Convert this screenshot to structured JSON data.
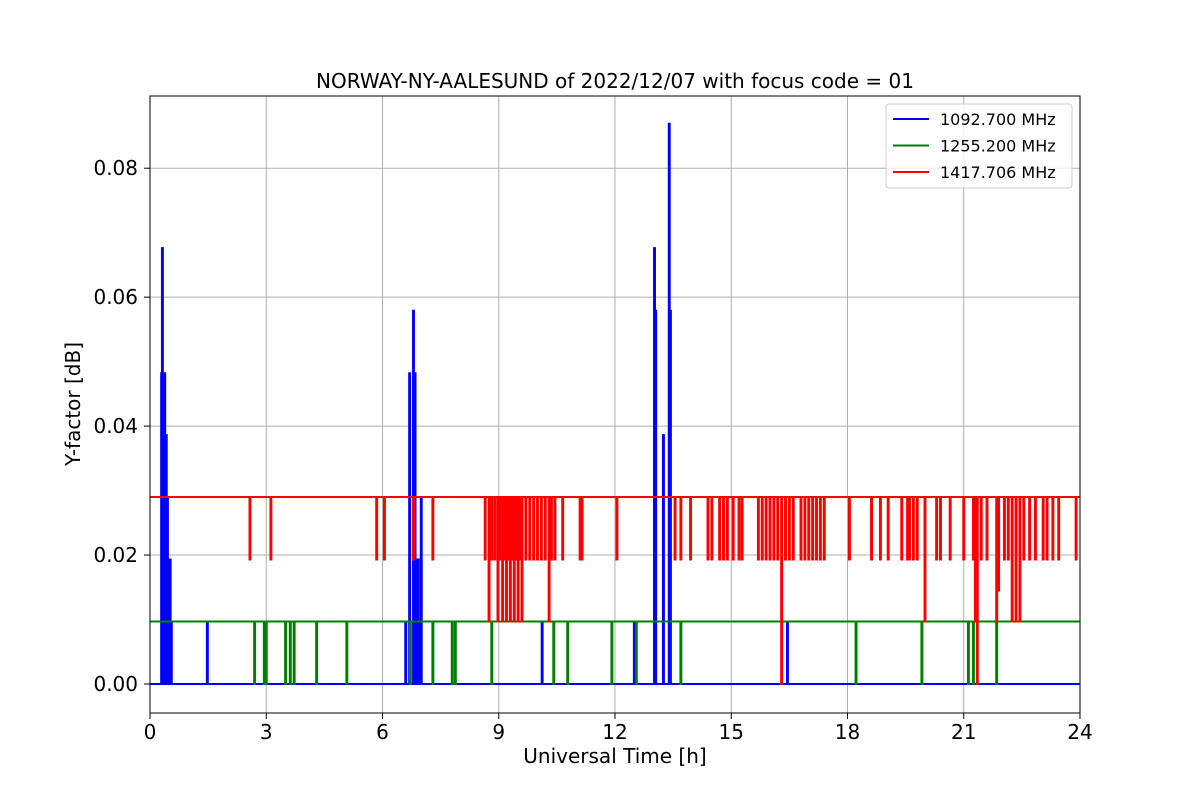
{
  "chart_data": {
    "type": "line",
    "title": "NORWAY-NY-AALESUND of 2022/12/07 with focus code = 01",
    "xlabel": "Universal Time [h]",
    "ylabel": "Y-factor [dB]",
    "xlim": [
      0,
      24
    ],
    "ylim": [
      -0.0045,
      0.0912
    ],
    "xticks": [
      0,
      3,
      6,
      9,
      12,
      15,
      18,
      21,
      24
    ],
    "xtick_labels": [
      "0",
      "3",
      "6",
      "9",
      "12",
      "15",
      "18",
      "21",
      "24"
    ],
    "yticks": [
      0.0,
      0.02,
      0.04,
      0.06,
      0.08
    ],
    "ytick_labels": [
      "0.00",
      "0.02",
      "0.04",
      "0.06",
      "0.08"
    ],
    "grid": true,
    "legend_position": "top-right",
    "series": [
      {
        "name": "1092.700 MHz",
        "color": "#0000ff",
        "baseline": 0.0,
        "spikes": [
          [
            0.3,
            0.0482
          ],
          [
            0.32,
            0.0676
          ],
          [
            0.34,
            0.0482
          ],
          [
            0.36,
            0.0386
          ],
          [
            0.38,
            0.0482
          ],
          [
            0.4,
            0.029
          ],
          [
            0.42,
            0.0386
          ],
          [
            0.45,
            0.029
          ],
          [
            0.48,
            0.0193
          ],
          [
            0.52,
            0.0193
          ],
          [
            0.55,
            0.0097
          ],
          [
            1.48,
            0.0097
          ],
          [
            6.6,
            0.0097
          ],
          [
            6.7,
            0.0482
          ],
          [
            6.8,
            0.0579
          ],
          [
            6.84,
            0.0482
          ],
          [
            6.88,
            0.0193
          ],
          [
            6.92,
            0.0193
          ],
          [
            6.96,
            0.0097
          ],
          [
            7.0,
            0.029
          ],
          [
            10.12,
            0.0097
          ],
          [
            12.5,
            0.0097
          ],
          [
            13.02,
            0.0676
          ],
          [
            13.05,
            0.0579
          ],
          [
            13.25,
            0.0386
          ],
          [
            13.4,
            0.0869
          ],
          [
            13.43,
            0.0579
          ],
          [
            16.45,
            0.0097
          ]
        ]
      },
      {
        "name": "1255.200 MHz",
        "color": "#008000",
        "baseline": 0.0097,
        "spikes": [
          [
            2.7,
            0.0
          ],
          [
            2.95,
            0.0
          ],
          [
            3.0,
            0.0
          ],
          [
            3.5,
            0.0
          ],
          [
            3.62,
            0.0
          ],
          [
            3.72,
            0.0
          ],
          [
            4.3,
            0.0
          ],
          [
            5.08,
            0.0
          ],
          [
            6.72,
            0.0
          ],
          [
            7.3,
            0.0
          ],
          [
            7.8,
            0.0
          ],
          [
            7.88,
            0.0
          ],
          [
            8.82,
            0.0
          ],
          [
            10.42,
            0.0
          ],
          [
            10.78,
            0.0
          ],
          [
            11.92,
            0.0
          ],
          [
            12.55,
            0.0
          ],
          [
            13.7,
            0.0
          ],
          [
            18.22,
            0.0
          ],
          [
            19.92,
            0.0
          ],
          [
            21.12,
            0.0
          ],
          [
            21.25,
            0.0
          ],
          [
            21.85,
            0.0
          ]
        ]
      },
      {
        "name": "1417.706 MHz",
        "color": "#ff0000",
        "baseline": 0.029,
        "spikes": [
          [
            2.58,
            0.0193
          ],
          [
            3.12,
            0.0193
          ],
          [
            5.85,
            0.0193
          ],
          [
            6.05,
            0.0193
          ],
          [
            6.8,
            0.0193
          ],
          [
            7.3,
            0.0193
          ],
          [
            8.65,
            0.0193
          ],
          [
            8.75,
            0.0097
          ],
          [
            8.82,
            0.0193
          ],
          [
            8.9,
            0.0193
          ],
          [
            8.98,
            0.0097
          ],
          [
            9.05,
            0.0193
          ],
          [
            9.1,
            0.0097
          ],
          [
            9.15,
            0.0193
          ],
          [
            9.2,
            0.0097
          ],
          [
            9.25,
            0.0193
          ],
          [
            9.3,
            0.0097
          ],
          [
            9.35,
            0.0193
          ],
          [
            9.4,
            0.0097
          ],
          [
            9.45,
            0.0193
          ],
          [
            9.5,
            0.0097
          ],
          [
            9.55,
            0.0193
          ],
          [
            9.6,
            0.0097
          ],
          [
            9.7,
            0.0193
          ],
          [
            9.8,
            0.0193
          ],
          [
            9.9,
            0.0193
          ],
          [
            10.0,
            0.0193
          ],
          [
            10.1,
            0.0193
          ],
          [
            10.2,
            0.0193
          ],
          [
            10.3,
            0.0097
          ],
          [
            10.36,
            0.0193
          ],
          [
            10.45,
            0.0193
          ],
          [
            10.65,
            0.0193
          ],
          [
            11.1,
            0.0193
          ],
          [
            11.15,
            0.0193
          ],
          [
            12.05,
            0.0193
          ],
          [
            13.55,
            0.0193
          ],
          [
            13.7,
            0.0193
          ],
          [
            13.95,
            0.0193
          ],
          [
            14.4,
            0.0193
          ],
          [
            14.5,
            0.0193
          ],
          [
            14.7,
            0.0193
          ],
          [
            14.8,
            0.0193
          ],
          [
            14.9,
            0.0193
          ],
          [
            15.05,
            0.0193
          ],
          [
            15.2,
            0.0193
          ],
          [
            15.28,
            0.0193
          ],
          [
            15.7,
            0.0193
          ],
          [
            15.8,
            0.0193
          ],
          [
            15.9,
            0.0193
          ],
          [
            16.0,
            0.0193
          ],
          [
            16.1,
            0.0193
          ],
          [
            16.2,
            0.0193
          ],
          [
            16.3,
            0.0
          ],
          [
            16.4,
            0.0193
          ],
          [
            16.5,
            0.0193
          ],
          [
            16.6,
            0.0193
          ],
          [
            16.8,
            0.0193
          ],
          [
            16.9,
            0.0193
          ],
          [
            17.0,
            0.0193
          ],
          [
            17.1,
            0.0193
          ],
          [
            17.2,
            0.0193
          ],
          [
            17.3,
            0.0193
          ],
          [
            17.4,
            0.0193
          ],
          [
            18.05,
            0.0193
          ],
          [
            18.62,
            0.0193
          ],
          [
            18.85,
            0.0193
          ],
          [
            19.05,
            0.0193
          ],
          [
            19.4,
            0.0193
          ],
          [
            19.55,
            0.0193
          ],
          [
            19.6,
            0.0193
          ],
          [
            19.7,
            0.0193
          ],
          [
            19.8,
            0.0193
          ],
          [
            20.0,
            0.0097
          ],
          [
            20.3,
            0.0193
          ],
          [
            20.4,
            0.0193
          ],
          [
            20.65,
            0.0193
          ],
          [
            21.0,
            0.0193
          ],
          [
            21.25,
            0.0193
          ],
          [
            21.3,
            0.0097
          ],
          [
            21.35,
            0.0
          ],
          [
            21.45,
            0.0193
          ],
          [
            21.6,
            0.0193
          ],
          [
            21.85,
            0.0097
          ],
          [
            21.9,
            0.0145
          ],
          [
            22.05,
            0.0193
          ],
          [
            22.15,
            0.0193
          ],
          [
            22.25,
            0.0097
          ],
          [
            22.35,
            0.0097
          ],
          [
            22.45,
            0.0097
          ],
          [
            22.55,
            0.0193
          ],
          [
            22.7,
            0.0193
          ],
          [
            22.85,
            0.0193
          ],
          [
            23.05,
            0.0193
          ],
          [
            23.15,
            0.0193
          ],
          [
            23.3,
            0.0193
          ],
          [
            23.45,
            0.0193
          ],
          [
            23.9,
            0.0193
          ]
        ]
      }
    ]
  }
}
